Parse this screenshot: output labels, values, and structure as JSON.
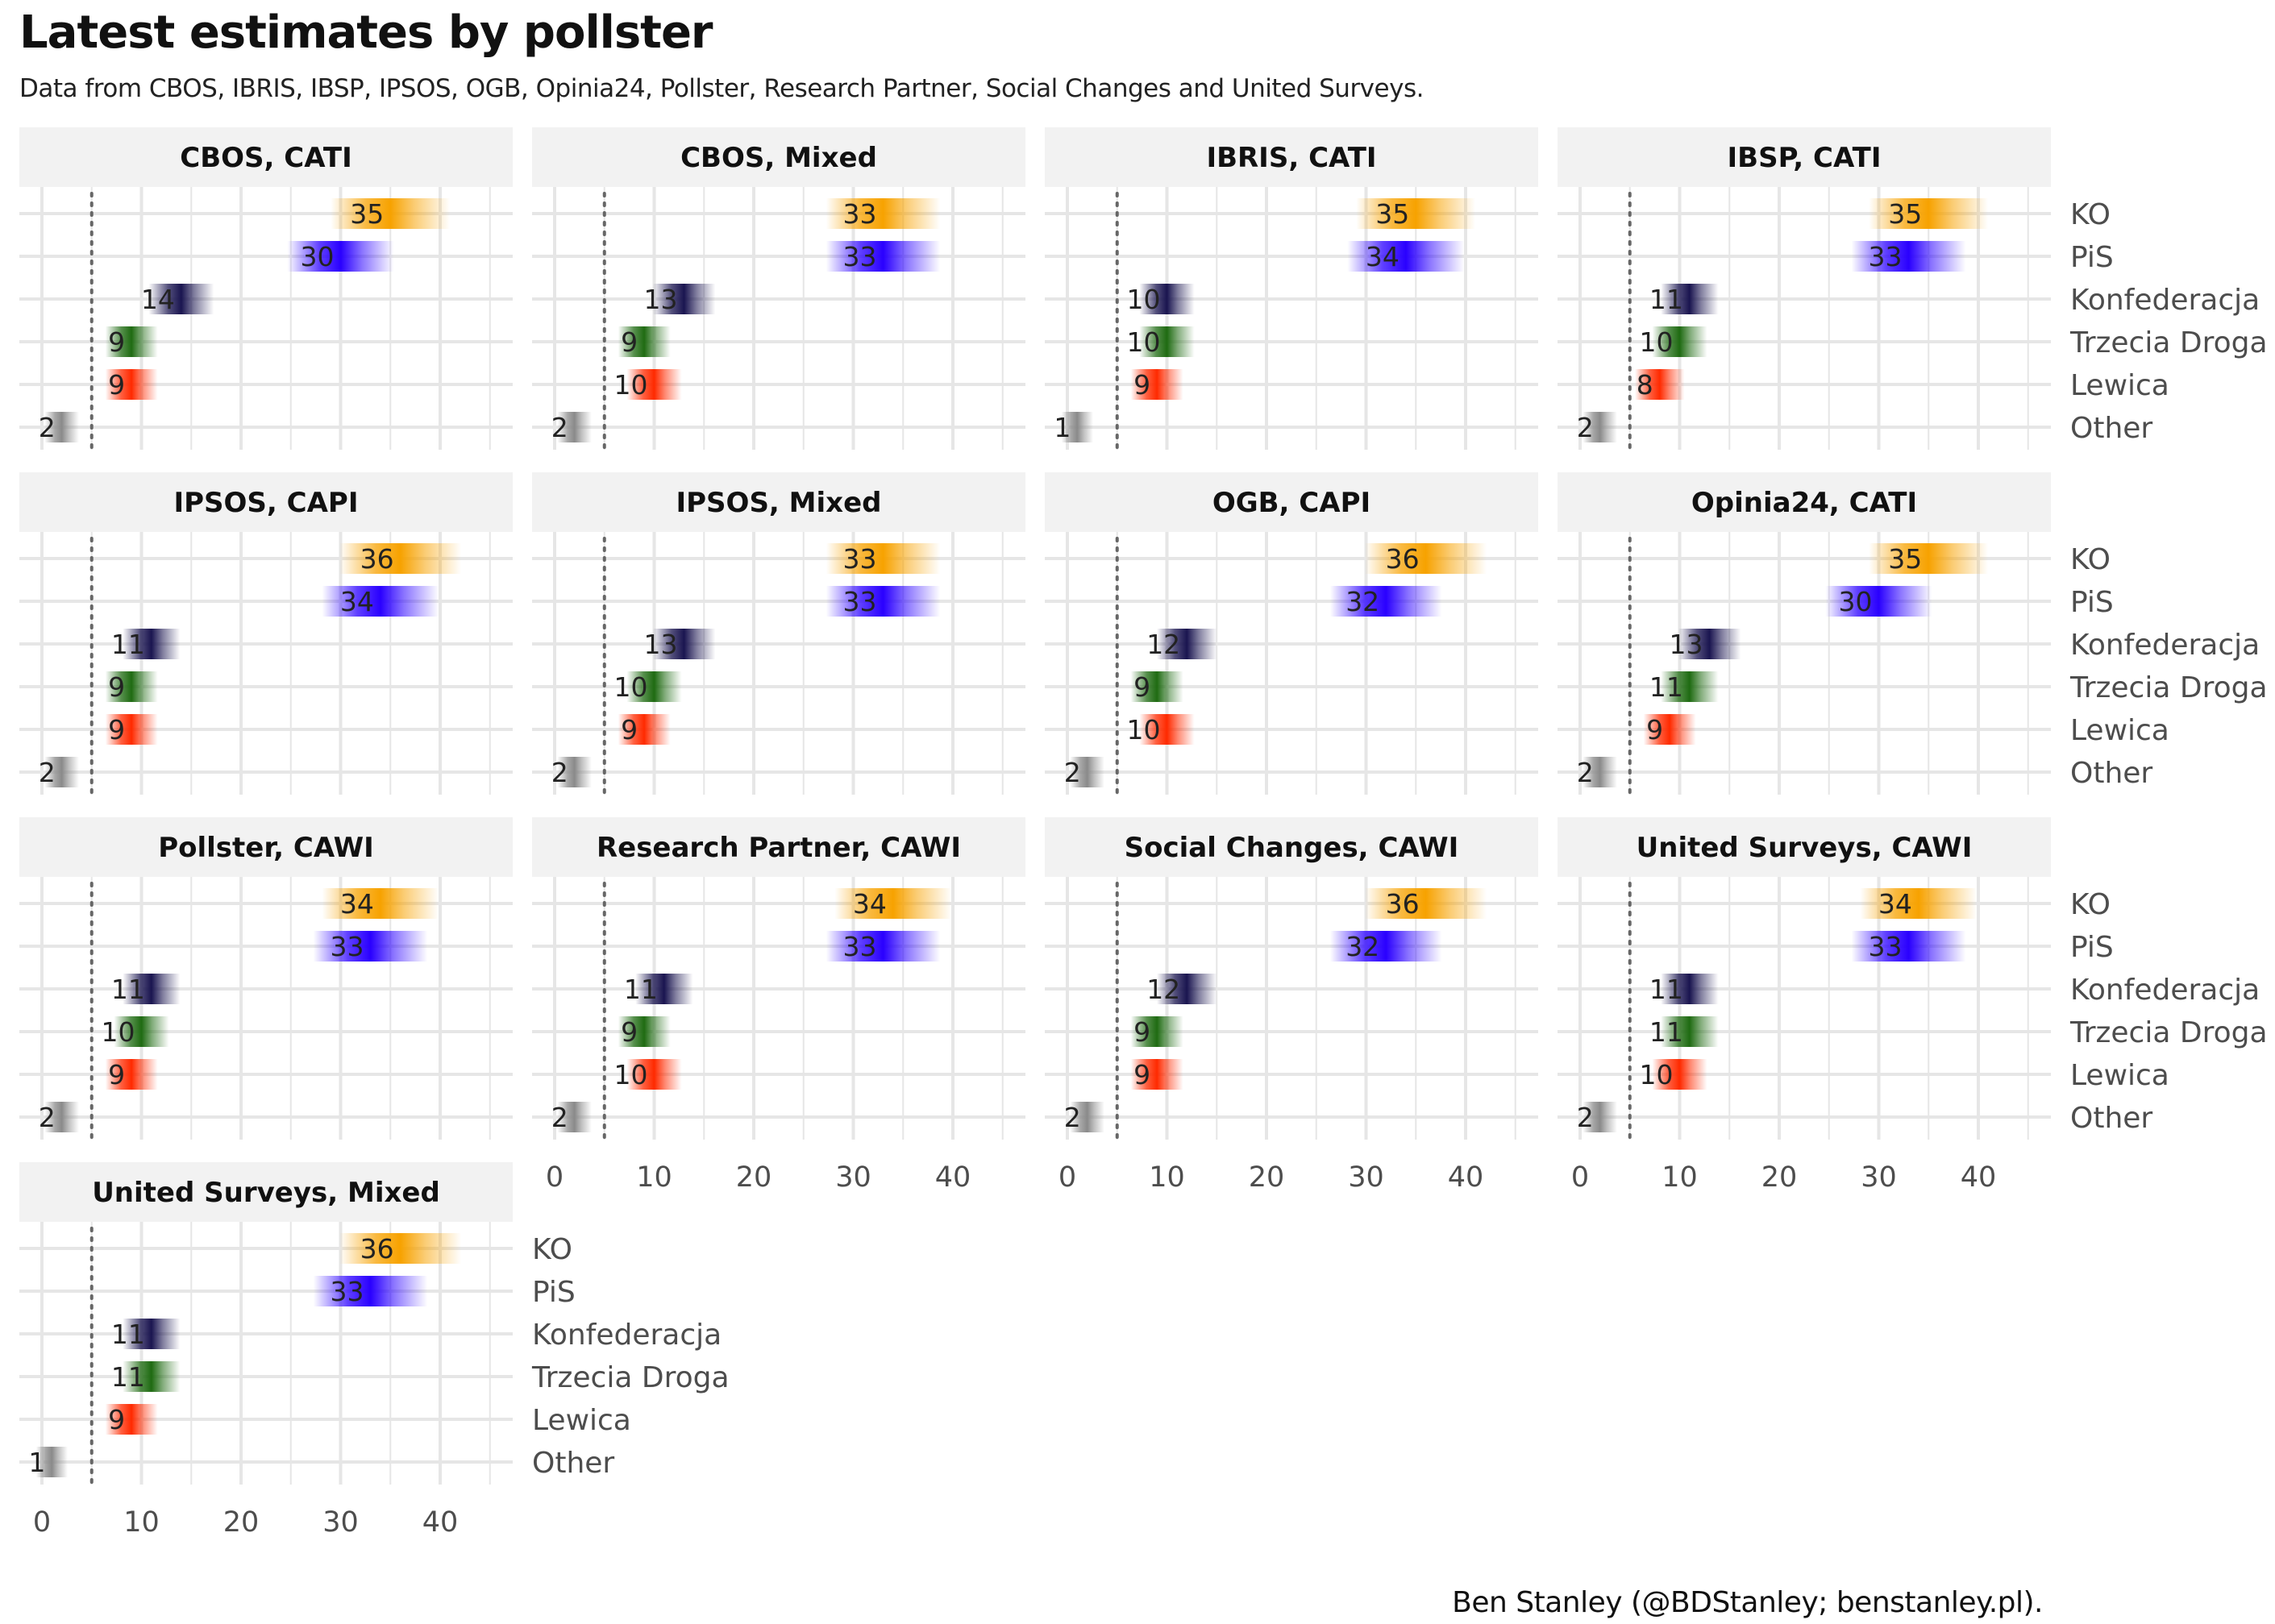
{
  "title": "Latest estimates by pollster",
  "subtitle": "Data from CBOS, IBRIS, IBSP, IPSOS, OGB, Opinia24, Pollster, Research Partner, Social Changes and United Surveys.",
  "caption": "Ben Stanley (@BDStanley; benstanley.pl).",
  "colors": {
    "KO": "#f7a200",
    "PiS": "#2a00ff",
    "Konfederacja": "#1a1550",
    "Trzecia Droga": "#1f6b12",
    "Lewica": "#ff2a00",
    "Other": "#8a8a8a",
    "strip_bg": "#f2f2f2",
    "grid": "#e6e6e6",
    "threshold_line": "#666666"
  },
  "chart_data": {
    "type": "bar",
    "layout": "small-multiples",
    "parties": [
      "KO",
      "PiS",
      "Konfederacja",
      "Trzecia Droga",
      "Lewica",
      "Other"
    ],
    "x_ticks": [
      0,
      10,
      20,
      30,
      40
    ],
    "xlim": [
      -2,
      45
    ],
    "threshold": 5,
    "grid": true,
    "panels": [
      {
        "label": "CBOS, CATI",
        "values": [
          35,
          30,
          14,
          9,
          9,
          2
        ]
      },
      {
        "label": "CBOS, Mixed",
        "values": [
          33,
          33,
          13,
          9,
          10,
          2
        ]
      },
      {
        "label": "IBRIS, CATI",
        "values": [
          35,
          34,
          10,
          10,
          9,
          1
        ]
      },
      {
        "label": "IBSP, CATI",
        "values": [
          35,
          33,
          11,
          10,
          8,
          2
        ]
      },
      {
        "label": "IPSOS, CAPI",
        "values": [
          36,
          34,
          11,
          9,
          9,
          2
        ]
      },
      {
        "label": "IPSOS, Mixed",
        "values": [
          33,
          33,
          13,
          10,
          9,
          2
        ]
      },
      {
        "label": "OGB, CAPI",
        "values": [
          36,
          32,
          12,
          9,
          10,
          2
        ]
      },
      {
        "label": "Opinia24, CATI",
        "values": [
          35,
          30,
          13,
          11,
          9,
          2
        ]
      },
      {
        "label": "Pollster, CAWI",
        "values": [
          34,
          33,
          11,
          10,
          9,
          2
        ]
      },
      {
        "label": "Research Partner, CAWI",
        "values": [
          34,
          33,
          11,
          9,
          10,
          2
        ]
      },
      {
        "label": "Social Changes, CAWI",
        "values": [
          36,
          32,
          12,
          9,
          9,
          2
        ]
      },
      {
        "label": "United Surveys, CAWI",
        "values": [
          34,
          33,
          11,
          11,
          10,
          2
        ]
      },
      {
        "label": "United Surveys, Mixed",
        "values": [
          36,
          33,
          11,
          11,
          9,
          1
        ]
      }
    ]
  }
}
